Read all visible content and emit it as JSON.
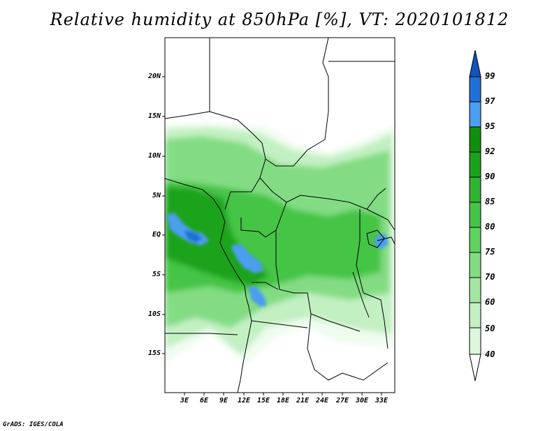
{
  "title": "Relative humidity at 850hPa [%], VT: 2020101812",
  "footer": "GrADS: IGES/COLA",
  "map": {
    "variable": "Relative humidity",
    "level": "850hPa",
    "units": "%",
    "valid_time": "2020101812",
    "lat_labels": [
      "20N",
      "15N",
      "10N",
      "5N",
      "EQ",
      "5S",
      "10S",
      "15S"
    ],
    "lon_labels": [
      "3E",
      "6E",
      "9E",
      "12E",
      "15E",
      "18E",
      "21E",
      "24E",
      "27E",
      "30E",
      "33E"
    ]
  },
  "colorbar": {
    "levels": [
      "99",
      "97",
      "95",
      "92",
      "90",
      "85",
      "80",
      "75",
      "70",
      "60",
      "50",
      "40"
    ],
    "colors": {
      "c40": "#f0fcf0",
      "c50": "#dcf7dc",
      "c60": "#c2f0c2",
      "c70": "#a2e6a2",
      "c75": "#83dc83",
      "c80": "#5fd35f",
      "c85": "#44c444",
      "c90": "#2fb52f",
      "c92": "#1aa31a",
      "c95": "#0e900e",
      "c97": "#4b9ef0",
      "c99": "#1f70d8",
      "cmax": "#0f56b8"
    }
  }
}
